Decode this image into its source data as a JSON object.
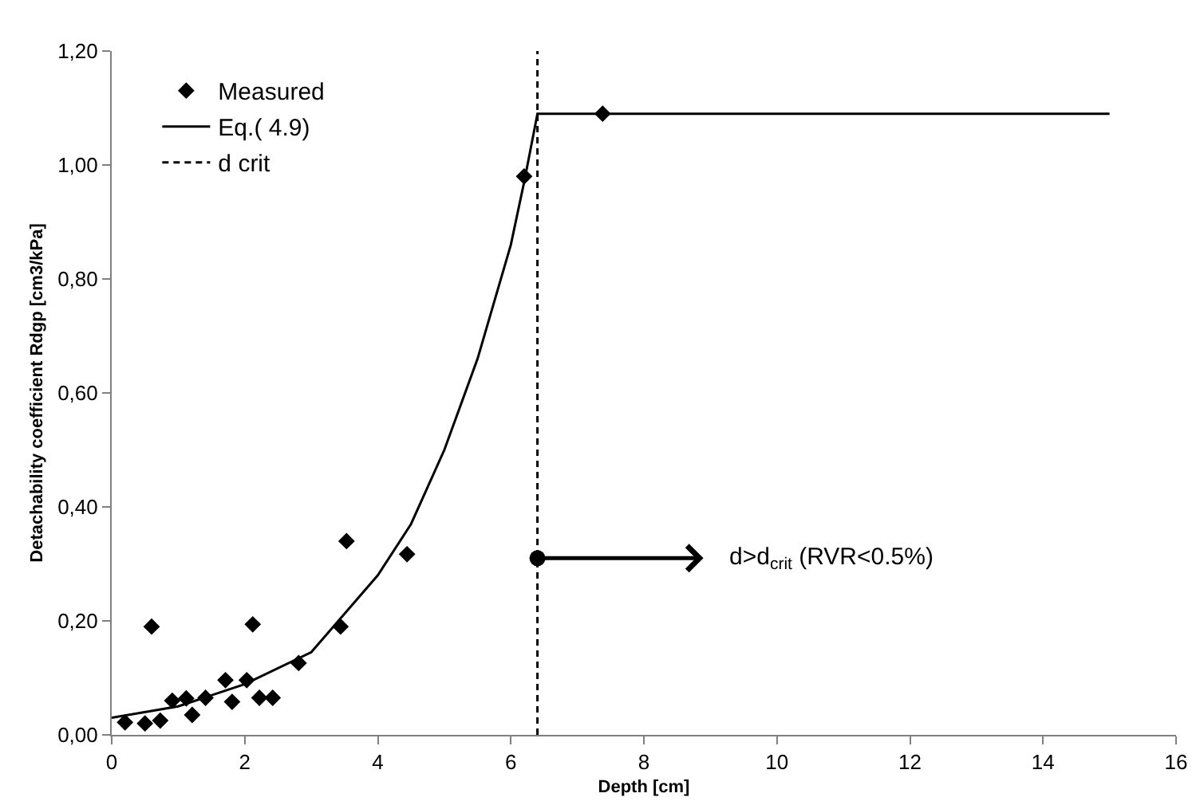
{
  "chart_data": {
    "type": "scatter",
    "xlabel": "Depth [cm]",
    "ylabel": "Detachability coefficient Rdgp [cm3/kPa]",
    "xlim": [
      0,
      16
    ],
    "xticks": [
      0,
      2,
      4,
      6,
      8,
      10,
      12,
      14,
      16
    ],
    "ylim": [
      0,
      1.2
    ],
    "yticks": [
      {
        "value": 0,
        "label": "0,00"
      },
      {
        "value": 0.2,
        "label": "0,20"
      },
      {
        "value": 0.4,
        "label": "0,40"
      },
      {
        "value": 0.6,
        "label": "0,60"
      },
      {
        "value": 0.8,
        "label": "0,80"
      },
      {
        "value": 1.0,
        "label": "1,00"
      },
      {
        "value": 1.2,
        "label": "1,20"
      }
    ],
    "legend": "top left",
    "series": [
      {
        "name": "Measured",
        "color": "#000000",
        "marker": "diamond",
        "x": [
          0.2,
          0.5,
          0.6,
          0.73,
          0.91,
          1.12,
          1.21,
          1.41,
          1.71,
          1.81,
          2.03,
          2.12,
          2.22,
          2.42,
          2.81,
          3.44,
          3.53,
          4.44,
          6.2,
          7.38
        ],
        "values": [
          0.022,
          0.02,
          0.19,
          0.025,
          0.06,
          0.064,
          0.035,
          0.065,
          0.096,
          0.058,
          0.096,
          0.194,
          0.065,
          0.065,
          0.126,
          0.19,
          0.34,
          0.317,
          0.98,
          1.09
        ]
      },
      {
        "name": "Eq.( 4.9)",
        "type": "line",
        "color": "#000000",
        "line_style": "solid",
        "x": [
          0,
          1,
          2,
          3,
          4,
          4.5,
          5,
          5.5,
          6,
          6.2,
          6.4,
          15
        ],
        "values": [
          0.03,
          0.05,
          0.089,
          0.145,
          0.28,
          0.37,
          0.5,
          0.66,
          0.86,
          0.97,
          1.09,
          1.09
        ]
      },
      {
        "name": "d crit",
        "type": "line",
        "color": "#000000",
        "line_style": "dashed",
        "x": [
          6.4,
          6.4
        ],
        "values": [
          0,
          1.2
        ]
      }
    ],
    "annotations": [
      {
        "text": "d>d$_{crit}$ (RVR<0.5%)",
        "x": 6.4,
        "y": 0.31
      }
    ]
  }
}
